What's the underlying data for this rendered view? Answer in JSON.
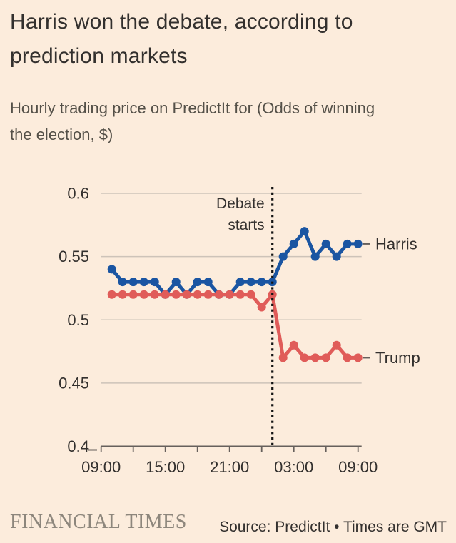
{
  "header": {
    "title": "Harris won the debate, according to prediction markets",
    "subtitle": "Hourly trading price on PredictIt for (Odds of winning the election, $)"
  },
  "chart_data": {
    "type": "line",
    "title": "Harris won the debate, according to prediction markets",
    "subtitle": "Hourly trading price on PredictIt for (Odds of winning the election, $)",
    "xlabel": "",
    "ylabel": "Odds of winning the election, $",
    "x": [
      "10:00",
      "11:00",
      "12:00",
      "13:00",
      "14:00",
      "15:00",
      "16:00",
      "17:00",
      "18:00",
      "19:00",
      "20:00",
      "21:00",
      "22:00",
      "23:00",
      "00:00",
      "01:00",
      "02:00",
      "03:00",
      "04:00",
      "05:00",
      "06:00",
      "07:00",
      "08:00",
      "09:00"
    ],
    "series": [
      {
        "name": "Harris",
        "color": "#1a55a2",
        "values": [
          0.54,
          0.53,
          0.53,
          0.53,
          0.53,
          0.52,
          0.53,
          0.52,
          0.53,
          0.53,
          0.52,
          0.52,
          0.53,
          0.53,
          0.53,
          0.53,
          0.55,
          0.56,
          0.57,
          0.55,
          0.56,
          0.55,
          0.56,
          0.56
        ]
      },
      {
        "name": "Trump",
        "color": "#e05c59",
        "values": [
          0.52,
          0.52,
          0.52,
          0.52,
          0.52,
          0.52,
          0.52,
          0.52,
          0.52,
          0.52,
          0.52,
          0.52,
          0.52,
          0.52,
          0.51,
          0.52,
          0.47,
          0.48,
          0.47,
          0.47,
          0.47,
          0.48,
          0.47,
          0.47
        ]
      }
    ],
    "y_ticks": [
      0.6,
      0.55,
      0.5,
      0.45,
      0.4
    ],
    "x_tick_labels": [
      "09:00",
      "",
      "15:00",
      "",
      "21:00",
      "",
      "03:00",
      "",
      "09:00"
    ],
    "ylim": [
      0.4,
      0.6
    ],
    "grid": "horizontal",
    "legend_position": "right-of-line-end",
    "annotation": {
      "line1": "Debate",
      "line2": "starts",
      "at_x": "01:00"
    },
    "colors": {
      "grid": "#cdc3b9",
      "axis": "#66605c",
      "text": "#33302e",
      "debate_line": "#141414"
    }
  },
  "footer": {
    "brand": "FINANCIAL TIMES",
    "source": "Source: PredictIt • Times are GMT"
  }
}
